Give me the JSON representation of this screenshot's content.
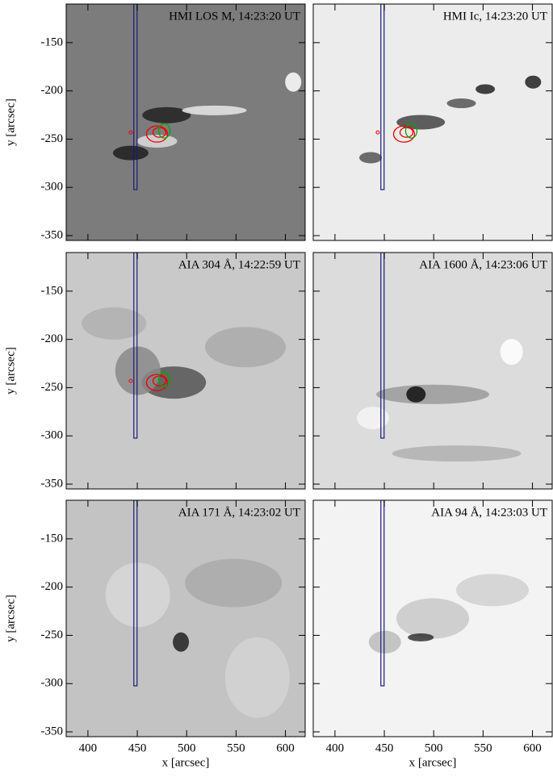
{
  "chart_data": [
    {
      "type": "image",
      "title": "HMI LOS M, 14:23:20 UT",
      "ylabel": "y [arcsec]",
      "xlim": [
        378,
        620
      ],
      "ylim": [
        -355,
        -110
      ],
      "xticks": [
        400,
        450,
        500,
        550,
        600
      ],
      "yticks": [
        -350,
        -300,
        -250,
        -200,
        -150
      ]
    },
    {
      "type": "image",
      "title": "HMI Ic, 14:23:20 UT",
      "xlim": [
        378,
        620
      ],
      "ylim": [
        -355,
        -110
      ],
      "xticks": [
        400,
        450,
        500,
        550,
        600
      ],
      "yticks": [
        -350,
        -300,
        -250,
        -200,
        -150
      ]
    },
    {
      "type": "image",
      "title": "AIA 304 Å, 14:22:59 UT",
      "ylabel": "y [arcsec]",
      "xlim": [
        378,
        620
      ],
      "ylim": [
        -355,
        -110
      ],
      "xticks": [
        400,
        450,
        500,
        550,
        600
      ],
      "yticks": [
        -350,
        -300,
        -250,
        -200,
        -150
      ]
    },
    {
      "type": "image",
      "title": "AIA 1600 Å, 14:23:06 UT",
      "xlim": [
        378,
        620
      ],
      "ylim": [
        -355,
        -110
      ],
      "xticks": [
        400,
        450,
        500,
        550,
        600
      ],
      "yticks": [
        -350,
        -300,
        -250,
        -200,
        -150
      ]
    },
    {
      "type": "image",
      "title": "AIA 171 Å, 14:23:02 UT",
      "xlabel": "x [arcsec]",
      "ylabel": "y [arcsec]",
      "xlim": [
        378,
        620
      ],
      "ylim": [
        -355,
        -110
      ],
      "xticks": [
        400,
        450,
        500,
        550,
        600
      ],
      "yticks": [
        -350,
        -300,
        -250,
        -200,
        -150
      ]
    },
    {
      "type": "image",
      "title": "AIA 94 Å, 14:23:03 UT",
      "xlabel": "x [arcsec]",
      "xlim": [
        378,
        620
      ],
      "ylim": [
        -355,
        -110
      ],
      "xticks": [
        400,
        450,
        500,
        550,
        600
      ],
      "yticks": [
        -350,
        -300,
        -250,
        -200,
        -150
      ]
    }
  ]
}
